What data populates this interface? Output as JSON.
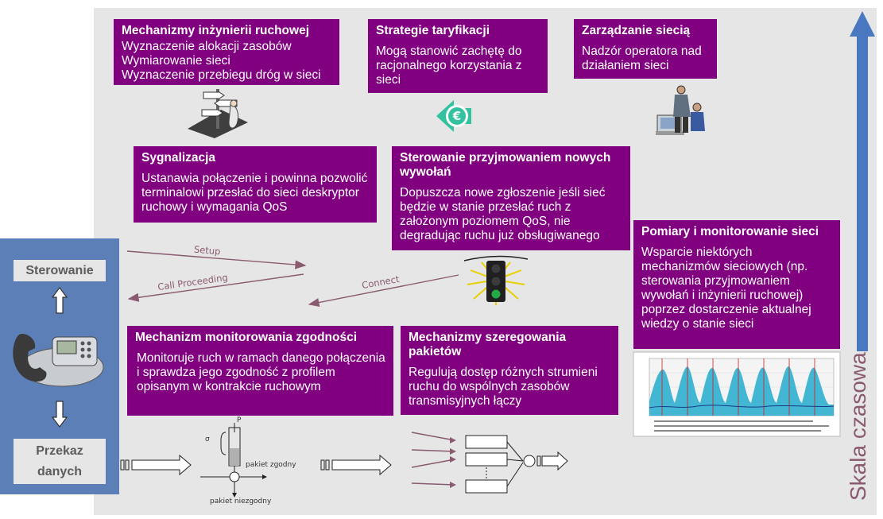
{
  "boxes": {
    "traffic_eng": {
      "title": "Mechanizmy inżynierii ruchowej",
      "lines": [
        "Wyznaczenie alokacji zasobów",
        "Wymiarowanie sieci",
        "Wyznaczenie przebiegu dróg w sieci"
      ]
    },
    "pricing": {
      "title": "Strategie taryfikacji",
      "body": "Mogą stanowić zachętę do racjonalnego korzystania z sieci"
    },
    "management": {
      "title": "Zarządzanie siecią",
      "body": "Nadzór operatora nad działaniem sieci"
    },
    "signaling": {
      "title": "Sygnalizacja",
      "body": "Ustanawia połączenie i powinna pozwolić terminalowi przesłać do sieci deskryptor ruchowy i wymagania QoS"
    },
    "admission": {
      "title": "Sterowanie przyjmowaniem nowych wywołań",
      "body": "Dopuszcza nowe zgłoszenie jeśli sieć będzie w stanie przesłać ruch z założonym poziomem QoS, nie degradując ruchu już obsługiwanego"
    },
    "measurement": {
      "title": "Pomiary i monitorowanie sieci",
      "body": "Wsparcie niektórych mechanizmów sieciowych (np. sterowania przyjmowaniem wywołań i inżynierii ruchowej) poprzez dostarczenie aktualnej wiedzy o stanie sieci"
    },
    "conformance": {
      "title": "Mechanizm monitorowania zgodności",
      "body": "Monitoruje ruch w ramach danego połączenia i sprawdza jego zgodność z profilem opisanym w kontrakcie ruchowym"
    },
    "scheduling": {
      "title": "Mechanizmy szeregowania pakietów",
      "body": "Regulują dostęp różnych strumieni ruchu do wspólnych zasobów transmisyjnych łączy"
    }
  },
  "left_panel": {
    "control_label": "Sterowanie",
    "data_label_line1": "Przekaz",
    "data_label_line2": "danych"
  },
  "signals": {
    "setup": "Setup",
    "call_proceeding": "Call Proceeding",
    "connect": "Connect"
  },
  "policer": {
    "conforming": "pakiet zgodny",
    "nonconforming": "pakiet niezgodny",
    "p_label": "P",
    "sigma_label": "σ"
  },
  "time_axis_label": "Skala czasowa",
  "colors": {
    "box": "#800080",
    "panel": "#5b7fb6",
    "background": "#e6e6e6",
    "arrow": "#8a5a70",
    "time_arrow": "#4a78c0"
  },
  "icons": [
    "signpost-icon",
    "euro-icon",
    "operator-icon",
    "traffic-light-icon",
    "phone-icon"
  ]
}
